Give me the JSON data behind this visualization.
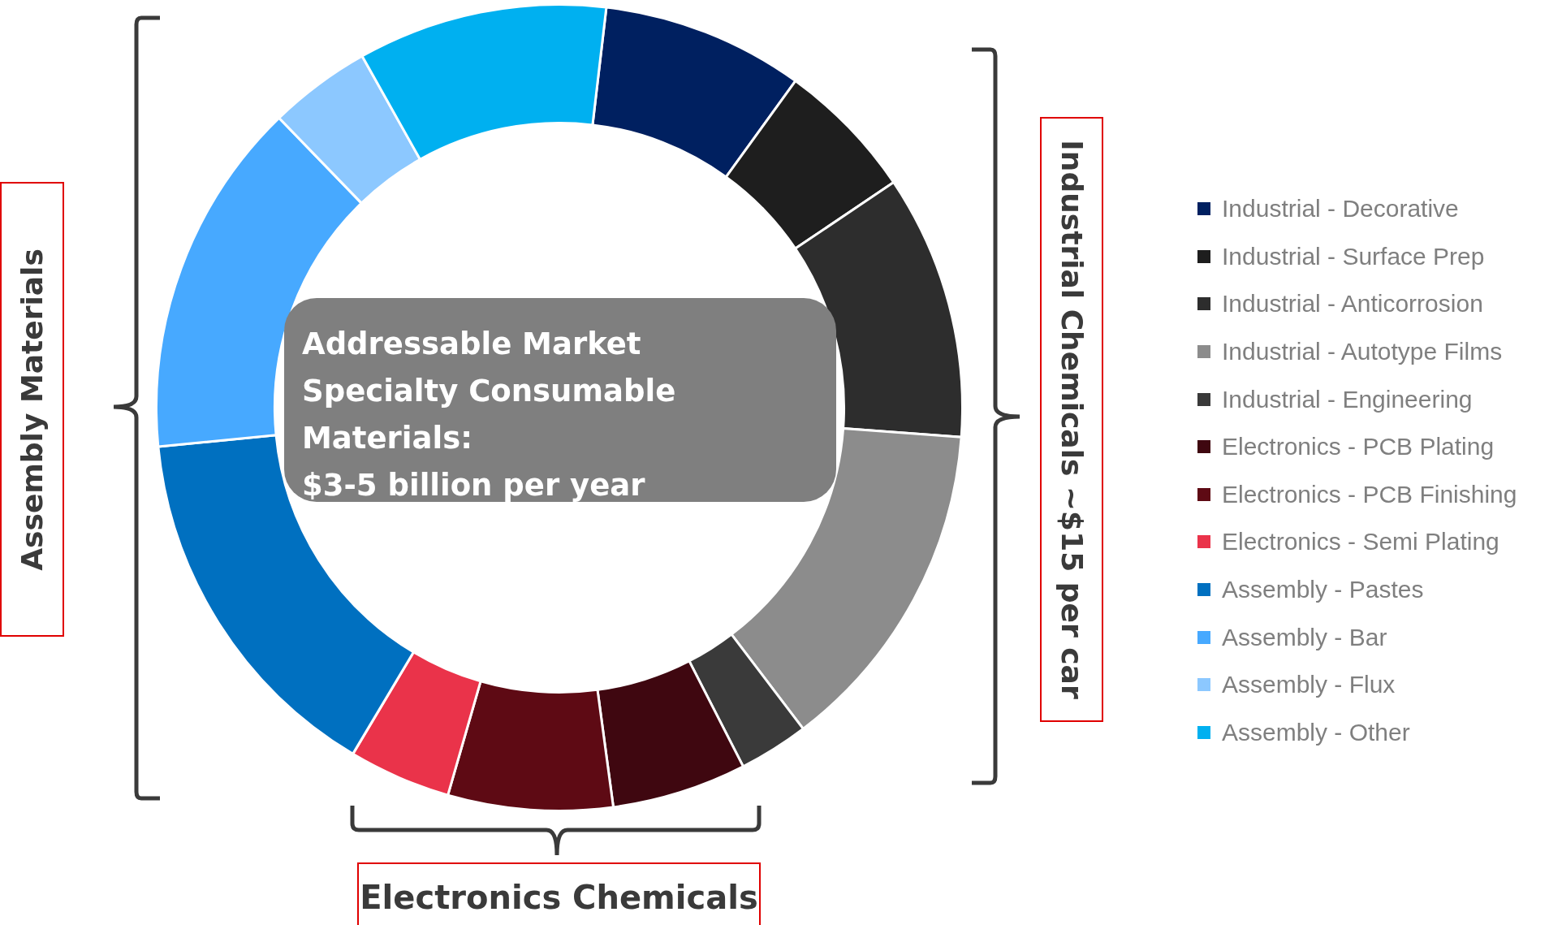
{
  "chart_data": {
    "type": "donut",
    "categories": [
      "Industrial - Decorative",
      "Industrial - Surface Prep",
      "Industrial - Anticorrosion",
      "Industrial - Autotype Films",
      "Industrial - Engineering",
      "Electronics - PCB Plating",
      "Electronics - PCB Finishing",
      "Electronics - Semi Plating",
      "Assembly - Pastes",
      "Assembly - Bar",
      "Assembly - Flux",
      "Assembly - Other"
    ],
    "values": [
      8.1,
      5.6,
      10.6,
      13.5,
      2.8,
      5.4,
      6.6,
      4.1,
      14.9,
      14.3,
      4.1,
      10.0
    ],
    "colors": [
      "#002060",
      "#1e1e1e",
      "#2d2d2d",
      "#8c8c8c",
      "#3a3a3a",
      "#3f0710",
      "#5e0a14",
      "#ea334a",
      "#0070c0",
      "#47a9ff",
      "#8cc8ff",
      "#00b0f0"
    ],
    "legend": "right",
    "annotations": [
      "Addressable Market\nSpecialty Consumable Materials:\n$3-5 billion per year",
      "Assembly Materials",
      "Industrial Chemicals ~$15 per car",
      "Electronics Chemicals"
    ]
  }
}
